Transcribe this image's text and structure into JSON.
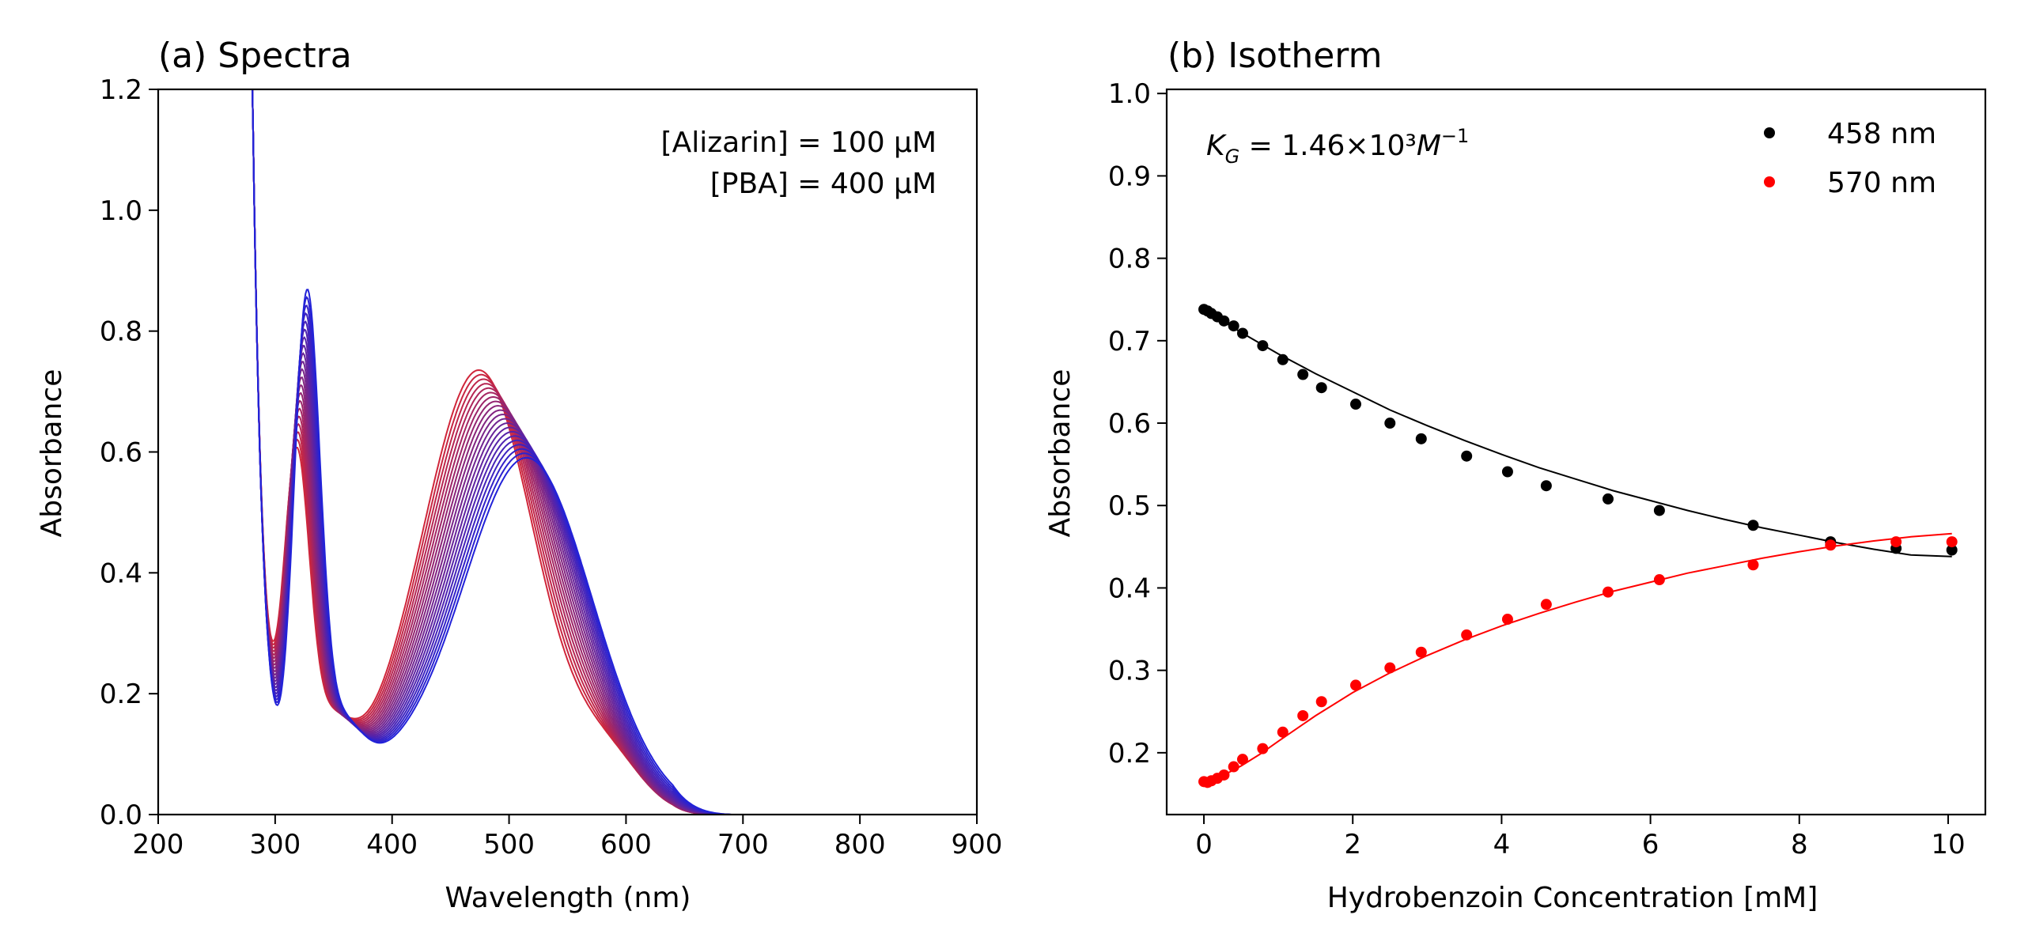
{
  "chart_data": [
    {
      "type": "line",
      "title": "(a) Spectra",
      "xlabel": "Wavelength (nm)",
      "ylabel": "Absorbance",
      "xlim": [
        200,
        900
      ],
      "ylim": [
        0.0,
        1.2
      ],
      "xticks": [
        "200",
        "300",
        "400",
        "500",
        "600",
        "700",
        "800",
        "900"
      ],
      "yticks": [
        "0.0",
        "0.2",
        "0.4",
        "0.6",
        "0.8",
        "1.0",
        "1.2"
      ],
      "annotations": [
        "[Alizarin] = 100 μM",
        "[PBA] = 400 μM"
      ],
      "grid": false,
      "color_start": "#d0263a",
      "color_end": "#2222d8",
      "series_count": 21,
      "peaks_first_curve": {
        "peak1_nm": 318,
        "peak1_abs": 0.64,
        "peak2_nm": 475,
        "peak2_abs": 0.78,
        "min_nm": 378,
        "min_abs": 0.17
      },
      "peaks_last_curve": {
        "peak1_nm": 327,
        "peak1_abs": 0.91,
        "peak2_nm": 515,
        "peak2_abs": 0.64,
        "min_nm": 395,
        "min_abs": 0.19
      },
      "isosbestic_points": [
        {
          "x": 392,
          "y": 0.19
        },
        {
          "x": 503,
          "y": 0.635
        }
      ]
    },
    {
      "type": "scatter",
      "title": "(b) Isotherm",
      "xlabel": "Hydrobenzoin Concentration [mM]",
      "ylabel": "Absorbance",
      "xlim": [
        -0.5,
        10.5
      ],
      "ylim": [
        0.125,
        1.005
      ],
      "xticks": [
        "0",
        "2",
        "4",
        "6",
        "8",
        "10"
      ],
      "yticks": [
        "0.2",
        "0.3",
        "0.4",
        "0.5",
        "0.6",
        "0.7",
        "0.8",
        "0.9",
        "1.0"
      ],
      "annotation": "K_G = 1.46×10³M⁻¹",
      "annotation_parts": {
        "k": "K",
        "sub": "G",
        "rest": " = 1.46×10³",
        "m": "M",
        "sup": "−1"
      },
      "legend_position": "top-right",
      "grid": false,
      "series": [
        {
          "name": "458 nm",
          "color": "#000000",
          "x": [
            0.0,
            0.05,
            0.1,
            0.18,
            0.27,
            0.4,
            0.52,
            0.79,
            1.06,
            1.33,
            1.58,
            2.04,
            2.5,
            2.92,
            3.53,
            4.08,
            4.6,
            5.43,
            6.12,
            7.38,
            8.42,
            9.3,
            10.05
          ],
          "y": [
            0.738,
            0.736,
            0.733,
            0.729,
            0.724,
            0.718,
            0.709,
            0.694,
            0.677,
            0.659,
            0.643,
            0.623,
            0.6,
            0.581,
            0.56,
            0.541,
            0.524,
            0.508,
            0.494,
            0.476,
            0.456,
            0.448,
            0.446
          ],
          "fit_x": [
            0.0,
            0.5,
            1.0,
            1.5,
            2.0,
            2.5,
            3.0,
            3.5,
            4.0,
            4.5,
            5.0,
            5.5,
            6.0,
            6.5,
            7.0,
            7.5,
            8.0,
            8.5,
            9.0,
            9.5,
            10.05
          ],
          "fit_y": [
            0.738,
            0.71,
            0.684,
            0.66,
            0.638,
            0.616,
            0.597,
            0.579,
            0.562,
            0.546,
            0.532,
            0.518,
            0.506,
            0.494,
            0.483,
            0.473,
            0.464,
            0.455,
            0.447,
            0.44,
            0.438
          ]
        },
        {
          "name": "570 nm",
          "color": "#ff0000",
          "x": [
            0.0,
            0.05,
            0.1,
            0.18,
            0.27,
            0.4,
            0.52,
            0.79,
            1.06,
            1.33,
            1.58,
            2.04,
            2.5,
            2.92,
            3.53,
            4.08,
            4.6,
            5.43,
            6.12,
            7.38,
            8.42,
            9.3,
            10.05
          ],
          "y": [
            0.165,
            0.164,
            0.166,
            0.169,
            0.173,
            0.183,
            0.192,
            0.205,
            0.225,
            0.245,
            0.262,
            0.282,
            0.303,
            0.322,
            0.343,
            0.362,
            0.38,
            0.395,
            0.41,
            0.428,
            0.452,
            0.456,
            0.456
          ],
          "fit_x": [
            0.0,
            0.25,
            0.5,
            0.75,
            1.0,
            1.5,
            2.0,
            2.5,
            3.0,
            3.5,
            4.0,
            4.5,
            5.0,
            5.5,
            6.0,
            6.5,
            7.0,
            7.5,
            8.0,
            8.5,
            9.0,
            9.5,
            10.05
          ],
          "fit_y": [
            0.165,
            0.172,
            0.184,
            0.198,
            0.214,
            0.245,
            0.273,
            0.297,
            0.318,
            0.337,
            0.354,
            0.369,
            0.383,
            0.396,
            0.407,
            0.418,
            0.427,
            0.436,
            0.444,
            0.451,
            0.457,
            0.462,
            0.466
          ]
        }
      ]
    }
  ]
}
